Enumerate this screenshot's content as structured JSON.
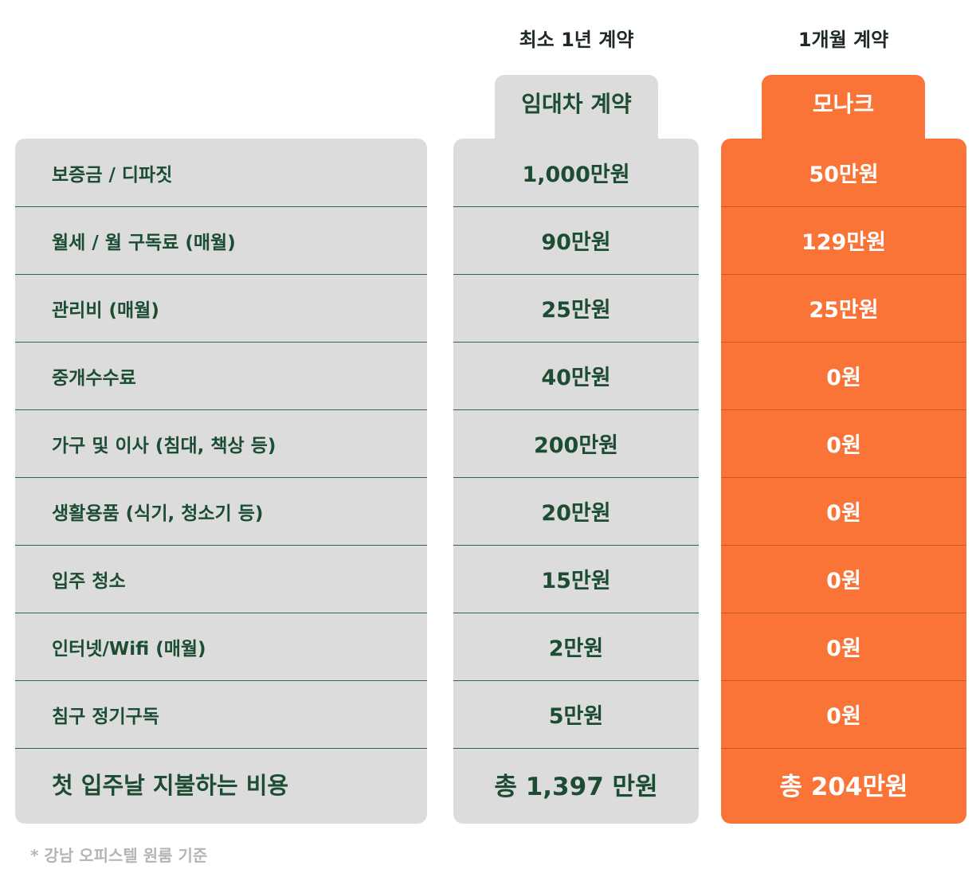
{
  "columns": {
    "lease_header": "최소 1년 계약",
    "monak_header": "1개월 계약",
    "lease_tab": "임대차 계약",
    "monak_tab": "모나크"
  },
  "rows": [
    {
      "label": "보증금 / 디파짓",
      "lease": "1,000만원",
      "monak": "50만원"
    },
    {
      "label": "월세 / 월 구독료 (매월)",
      "lease": "90만원",
      "monak": "129만원"
    },
    {
      "label": "관리비 (매월)",
      "lease": "25만원",
      "monak": "25만원"
    },
    {
      "label": "중개수수료",
      "lease": "40만원",
      "monak": "0원"
    },
    {
      "label": "가구 및 이사 (침대, 책상 등)",
      "lease": "200만원",
      "monak": "0원"
    },
    {
      "label": "생활용품 (식기, 청소기 등)",
      "lease": "20만원",
      "monak": "0원"
    },
    {
      "label": "입주 청소",
      "lease": "15만원",
      "monak": "0원"
    },
    {
      "label": "인터넷/Wifi (매월)",
      "lease": "2만원",
      "monak": "0원"
    },
    {
      "label": "침구 정기구독",
      "lease": "5만원",
      "monak": "0원"
    }
  ],
  "total": {
    "label": "첫 입주날 지불하는 비용",
    "lease": "총 1,397 만원",
    "monak": "총 204만원"
  },
  "footnote": "* 강남 오피스텔 원룸 기준",
  "colors": {
    "accent": "#fb7437",
    "panel_gray": "#dcdcdc",
    "text_green": "#1c4d33"
  }
}
